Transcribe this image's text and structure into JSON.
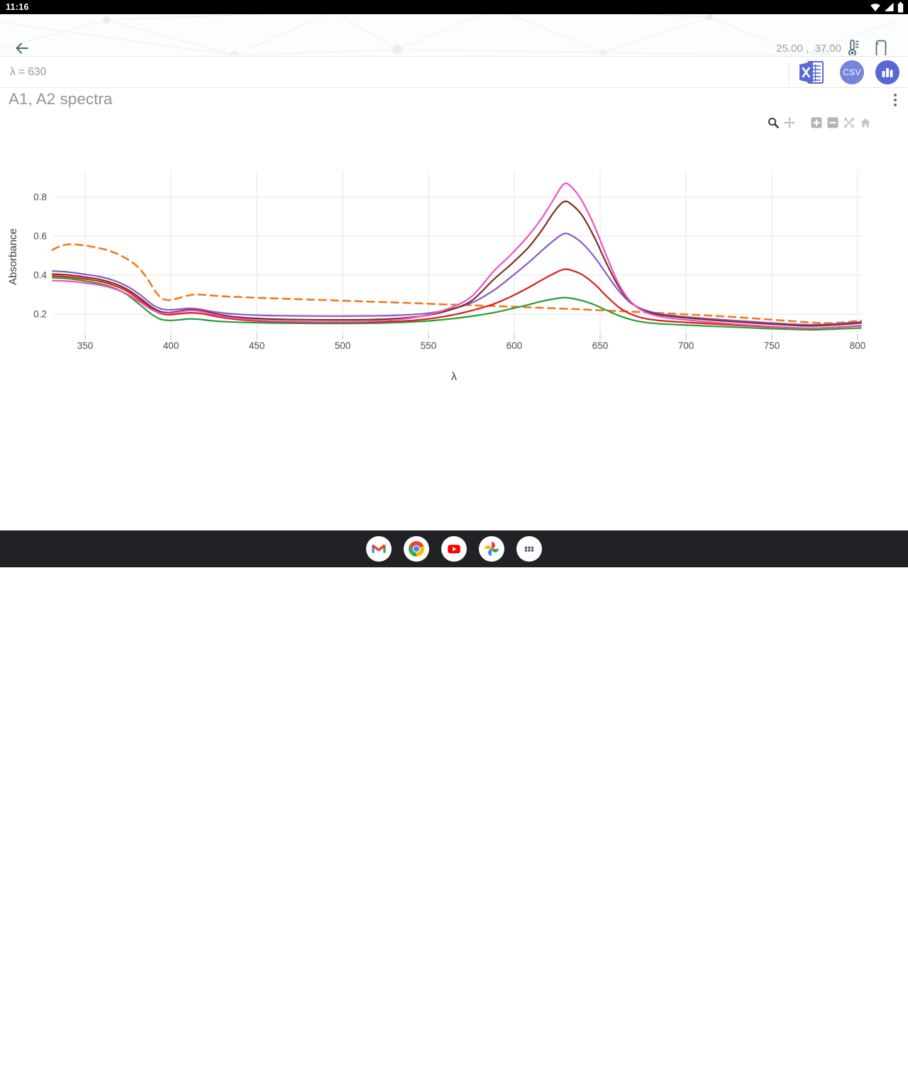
{
  "colors": {
    "accent_indigo": "#5b6ad0",
    "csv_circle": "#7584dc",
    "graph_circle": "#5767d3",
    "status_bar_bg": "#000000",
    "nav_bar_bg": "#212126",
    "icon_slate": "#53707e",
    "muted_text": "#8d969c",
    "gridline": "#eaeaea"
  },
  "status_bar": {
    "time": "11:16"
  },
  "app_bar": {
    "readings": "25.00 ,  37.00"
  },
  "toolbar": {
    "lambda_label": "λ = 630",
    "csv_label": "CSV"
  },
  "header": {
    "title": "A1, A2 spectra"
  },
  "modebar": {
    "tools": [
      "zoom",
      "pan",
      "zoom-in",
      "zoom-out",
      "autoscale",
      "reset-home"
    ]
  },
  "dock": {
    "apps": [
      "gmail",
      "chrome",
      "youtube",
      "photos",
      "app-drawer"
    ]
  },
  "nav_bar": {
    "buttons": [
      "back",
      "home",
      "recents"
    ]
  },
  "chart_data": {
    "type": "line",
    "title": "A1, A2 spectra",
    "xlabel": "λ",
    "ylabel": "Absorbance",
    "xlim": [
      331,
      803
    ],
    "ylim": [
      0.075,
      0.94
    ],
    "xticks": [
      350,
      400,
      450,
      500,
      550,
      600,
      650,
      700,
      750,
      800
    ],
    "yticks": [
      0.2,
      0.4,
      0.6,
      0.8
    ],
    "grid": true,
    "legend": false,
    "series": [
      {
        "name": "orange-dashed",
        "color": "#ef7b1c",
        "dash": true,
        "points": [
          [
            331,
            0.53
          ],
          [
            336,
            0.55
          ],
          [
            341,
            0.558
          ],
          [
            348,
            0.554
          ],
          [
            356,
            0.543
          ],
          [
            364,
            0.525
          ],
          [
            372,
            0.495
          ],
          [
            380,
            0.448
          ],
          [
            386,
            0.385
          ],
          [
            391,
            0.315
          ],
          [
            395,
            0.28
          ],
          [
            399,
            0.272
          ],
          [
            404,
            0.281
          ],
          [
            410,
            0.296
          ],
          [
            415,
            0.301
          ],
          [
            422,
            0.297
          ],
          [
            432,
            0.291
          ],
          [
            445,
            0.286
          ],
          [
            460,
            0.281
          ],
          [
            480,
            0.275
          ],
          [
            500,
            0.269
          ],
          [
            520,
            0.263
          ],
          [
            540,
            0.257
          ],
          [
            560,
            0.25
          ],
          [
            580,
            0.244
          ],
          [
            600,
            0.238
          ],
          [
            620,
            0.231
          ],
          [
            640,
            0.224
          ],
          [
            660,
            0.216
          ],
          [
            680,
            0.208
          ],
          [
            700,
            0.199
          ],
          [
            715,
            0.192
          ],
          [
            730,
            0.184
          ],
          [
            745,
            0.175
          ],
          [
            760,
            0.165
          ],
          [
            772,
            0.158
          ],
          [
            782,
            0.154
          ],
          [
            792,
            0.158
          ],
          [
            802,
            0.168
          ]
        ]
      },
      {
        "name": "green",
        "color": "#2d9c32",
        "dash": false,
        "points": [
          [
            331,
            0.387
          ],
          [
            340,
            0.382
          ],
          [
            350,
            0.37
          ],
          [
            358,
            0.357
          ],
          [
            366,
            0.337
          ],
          [
            374,
            0.302
          ],
          [
            382,
            0.248
          ],
          [
            389,
            0.198
          ],
          [
            394,
            0.174
          ],
          [
            399,
            0.168
          ],
          [
            405,
            0.171
          ],
          [
            411,
            0.176
          ],
          [
            417,
            0.173
          ],
          [
            424,
            0.166
          ],
          [
            432,
            0.161
          ],
          [
            442,
            0.158
          ],
          [
            455,
            0.155
          ],
          [
            475,
            0.153
          ],
          [
            495,
            0.152
          ],
          [
            515,
            0.153
          ],
          [
            532,
            0.157
          ],
          [
            548,
            0.164
          ],
          [
            562,
            0.175
          ],
          [
            575,
            0.189
          ],
          [
            588,
            0.208
          ],
          [
            598,
            0.227
          ],
          [
            608,
            0.248
          ],
          [
            616,
            0.266
          ],
          [
            623,
            0.278
          ],
          [
            629,
            0.285
          ],
          [
            634,
            0.28
          ],
          [
            640,
            0.268
          ],
          [
            647,
            0.247
          ],
          [
            654,
            0.219
          ],
          [
            661,
            0.192
          ],
          [
            668,
            0.172
          ],
          [
            676,
            0.158
          ],
          [
            686,
            0.15
          ],
          [
            700,
            0.144
          ],
          [
            716,
            0.138
          ],
          [
            732,
            0.132
          ],
          [
            748,
            0.126
          ],
          [
            762,
            0.122
          ],
          [
            774,
            0.12
          ],
          [
            788,
            0.124
          ],
          [
            802,
            0.129
          ]
        ]
      },
      {
        "name": "red",
        "color": "#d81f1f",
        "dash": false,
        "points": [
          [
            331,
            0.396
          ],
          [
            340,
            0.391
          ],
          [
            350,
            0.38
          ],
          [
            358,
            0.369
          ],
          [
            366,
            0.35
          ],
          [
            374,
            0.32
          ],
          [
            382,
            0.272
          ],
          [
            389,
            0.226
          ],
          [
            394,
            0.203
          ],
          [
            399,
            0.197
          ],
          [
            405,
            0.202
          ],
          [
            411,
            0.207
          ],
          [
            417,
            0.204
          ],
          [
            424,
            0.192
          ],
          [
            432,
            0.18
          ],
          [
            442,
            0.17
          ],
          [
            455,
            0.163
          ],
          [
            475,
            0.159
          ],
          [
            495,
            0.158
          ],
          [
            515,
            0.159
          ],
          [
            532,
            0.163
          ],
          [
            548,
            0.174
          ],
          [
            562,
            0.192
          ],
          [
            575,
            0.218
          ],
          [
            588,
            0.252
          ],
          [
            598,
            0.29
          ],
          [
            608,
            0.335
          ],
          [
            616,
            0.375
          ],
          [
            623,
            0.408
          ],
          [
            629,
            0.43
          ],
          [
            634,
            0.423
          ],
          [
            640,
            0.4
          ],
          [
            647,
            0.352
          ],
          [
            654,
            0.29
          ],
          [
            661,
            0.235
          ],
          [
            668,
            0.2
          ],
          [
            676,
            0.178
          ],
          [
            686,
            0.166
          ],
          [
            700,
            0.158
          ],
          [
            716,
            0.15
          ],
          [
            732,
            0.142
          ],
          [
            748,
            0.135
          ],
          [
            762,
            0.13
          ],
          [
            774,
            0.128
          ],
          [
            788,
            0.133
          ],
          [
            802,
            0.14
          ]
        ]
      },
      {
        "name": "purple",
        "color": "#8a5bc8",
        "dash": false,
        "points": [
          [
            331,
            0.421
          ],
          [
            340,
            0.416
          ],
          [
            350,
            0.404
          ],
          [
            358,
            0.393
          ],
          [
            366,
            0.375
          ],
          [
            374,
            0.345
          ],
          [
            382,
            0.3
          ],
          [
            389,
            0.25
          ],
          [
            394,
            0.228
          ],
          [
            399,
            0.222
          ],
          [
            405,
            0.226
          ],
          [
            411,
            0.23
          ],
          [
            417,
            0.225
          ],
          [
            424,
            0.213
          ],
          [
            432,
            0.204
          ],
          [
            442,
            0.198
          ],
          [
            455,
            0.193
          ],
          [
            475,
            0.191
          ],
          [
            495,
            0.19
          ],
          [
            515,
            0.191
          ],
          [
            532,
            0.194
          ],
          [
            548,
            0.203
          ],
          [
            562,
            0.224
          ],
          [
            575,
            0.258
          ],
          [
            588,
            0.322
          ],
          [
            598,
            0.39
          ],
          [
            608,
            0.462
          ],
          [
            616,
            0.525
          ],
          [
            623,
            0.578
          ],
          [
            629,
            0.613
          ],
          [
            634,
            0.6
          ],
          [
            640,
            0.56
          ],
          [
            647,
            0.49
          ],
          [
            654,
            0.402
          ],
          [
            661,
            0.318
          ],
          [
            668,
            0.256
          ],
          [
            676,
            0.221
          ],
          [
            686,
            0.2
          ],
          [
            700,
            0.186
          ],
          [
            716,
            0.175
          ],
          [
            732,
            0.165
          ],
          [
            748,
            0.156
          ],
          [
            762,
            0.149
          ],
          [
            774,
            0.146
          ],
          [
            788,
            0.151
          ],
          [
            802,
            0.16
          ]
        ]
      },
      {
        "name": "maroon",
        "color": "#7c2e22",
        "dash": false,
        "points": [
          [
            331,
            0.406
          ],
          [
            340,
            0.401
          ],
          [
            350,
            0.39
          ],
          [
            358,
            0.379
          ],
          [
            366,
            0.36
          ],
          [
            374,
            0.33
          ],
          [
            382,
            0.283
          ],
          [
            389,
            0.235
          ],
          [
            394,
            0.213
          ],
          [
            399,
            0.208
          ],
          [
            405,
            0.216
          ],
          [
            411,
            0.223
          ],
          [
            417,
            0.219
          ],
          [
            424,
            0.206
          ],
          [
            432,
            0.192
          ],
          [
            442,
            0.182
          ],
          [
            455,
            0.176
          ],
          [
            475,
            0.172
          ],
          [
            495,
            0.171
          ],
          [
            515,
            0.172
          ],
          [
            532,
            0.178
          ],
          [
            548,
            0.192
          ],
          [
            562,
            0.22
          ],
          [
            575,
            0.268
          ],
          [
            588,
            0.378
          ],
          [
            598,
            0.455
          ],
          [
            608,
            0.54
          ],
          [
            616,
            0.63
          ],
          [
            623,
            0.722
          ],
          [
            629,
            0.777
          ],
          [
            634,
            0.758
          ],
          [
            640,
            0.7
          ],
          [
            647,
            0.588
          ],
          [
            654,
            0.455
          ],
          [
            661,
            0.338
          ],
          [
            668,
            0.26
          ],
          [
            676,
            0.217
          ],
          [
            686,
            0.195
          ],
          [
            700,
            0.181
          ],
          [
            716,
            0.169
          ],
          [
            732,
            0.159
          ],
          [
            748,
            0.15
          ],
          [
            762,
            0.143
          ],
          [
            774,
            0.14
          ],
          [
            788,
            0.146
          ],
          [
            802,
            0.155
          ]
        ]
      },
      {
        "name": "pink",
        "color": "#ec53c4",
        "dash": false,
        "points": [
          [
            331,
            0.372
          ],
          [
            340,
            0.369
          ],
          [
            350,
            0.36
          ],
          [
            358,
            0.35
          ],
          [
            366,
            0.333
          ],
          [
            374,
            0.305
          ],
          [
            382,
            0.262
          ],
          [
            389,
            0.222
          ],
          [
            394,
            0.206
          ],
          [
            399,
            0.204
          ],
          [
            405,
            0.212
          ],
          [
            411,
            0.219
          ],
          [
            417,
            0.215
          ],
          [
            424,
            0.2
          ],
          [
            432,
            0.186
          ],
          [
            442,
            0.175
          ],
          [
            455,
            0.167
          ],
          [
            475,
            0.162
          ],
          [
            495,
            0.161
          ],
          [
            515,
            0.163
          ],
          [
            532,
            0.172
          ],
          [
            548,
            0.193
          ],
          [
            562,
            0.23
          ],
          [
            575,
            0.29
          ],
          [
            588,
            0.42
          ],
          [
            598,
            0.505
          ],
          [
            608,
            0.6
          ],
          [
            616,
            0.692
          ],
          [
            623,
            0.79
          ],
          [
            629,
            0.868
          ],
          [
            634,
            0.846
          ],
          [
            640,
            0.772
          ],
          [
            647,
            0.645
          ],
          [
            654,
            0.492
          ],
          [
            661,
            0.352
          ],
          [
            668,
            0.262
          ],
          [
            676,
            0.212
          ],
          [
            686,
            0.186
          ],
          [
            700,
            0.171
          ],
          [
            716,
            0.158
          ],
          [
            732,
            0.147
          ],
          [
            748,
            0.138
          ],
          [
            762,
            0.131
          ],
          [
            774,
            0.128
          ],
          [
            788,
            0.134
          ],
          [
            802,
            0.142
          ]
        ]
      }
    ]
  }
}
